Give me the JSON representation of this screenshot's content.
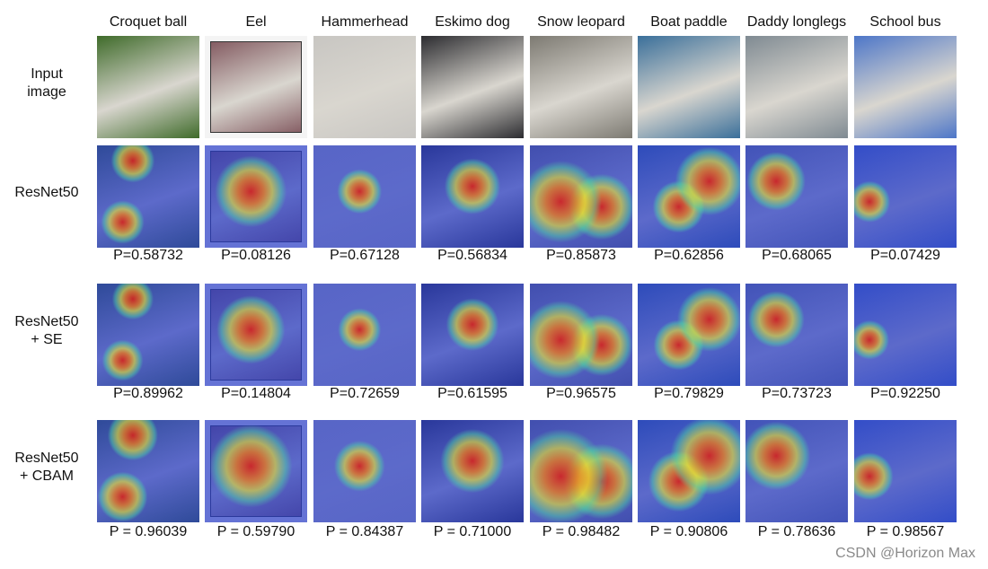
{
  "columns": [
    "Croquet ball",
    "Eel",
    "Hammerhead",
    "Eskimo dog",
    "Snow leopard",
    "Boat paddle",
    "Daddy longlegs",
    "School bus"
  ],
  "rows": [
    {
      "label_lines": [
        "Input",
        "image"
      ],
      "kind": "input"
    },
    {
      "label_lines": [
        "ResNet50"
      ],
      "kind": "heatmap",
      "probs": [
        "P=0.58732",
        "P=0.08126",
        "P=0.67128",
        "P=0.56834",
        "P=0.85873",
        "P=0.62856",
        "P=0.68065",
        "P=0.07429"
      ]
    },
    {
      "label_lines": [
        "ResNet50",
        "+ SE"
      ],
      "kind": "heatmap",
      "probs": [
        "P=0.89962",
        "P=0.14804",
        "P=0.72659",
        "P=0.61595",
        "P=0.96575",
        "P=0.79829",
        "P=0.73723",
        "P=0.92250"
      ]
    },
    {
      "label_lines": [
        "ResNet50",
        "+ CBAM"
      ],
      "kind": "heatmap",
      "probs": [
        "P = 0.96039",
        "P = 0.59790",
        "P = 0.84387",
        "P = 0.71000",
        "P = 0.98482",
        "P = 0.90806",
        "P = 0.78636",
        "P = 0.98567"
      ]
    }
  ],
  "watermark": "CSDN @Horizon Max",
  "scene_colors": [
    "#3f6b2a",
    "#7a4d55",
    "#c8c6c2",
    "#2c2c30",
    "#7d7a72",
    "#3a6f9a",
    "#7f8a92",
    "#4d76c8"
  ],
  "heat_spots": [
    [
      [
        0.25,
        0.75,
        0.2
      ],
      [
        0.35,
        0.15,
        0.2
      ]
    ],
    [
      [
        0.45,
        0.45,
        0.45
      ]
    ],
    [
      [
        0.45,
        0.45,
        0.28
      ]
    ],
    [
      [
        0.5,
        0.4,
        0.35
      ]
    ],
    [
      [
        0.3,
        0.55,
        0.45
      ],
      [
        0.7,
        0.6,
        0.35
      ]
    ],
    [
      [
        0.7,
        0.35,
        0.35
      ],
      [
        0.4,
        0.6,
        0.3
      ]
    ],
    [
      [
        0.3,
        0.35,
        0.3
      ]
    ],
    [
      [
        0.15,
        0.55,
        0.2
      ]
    ]
  ]
}
